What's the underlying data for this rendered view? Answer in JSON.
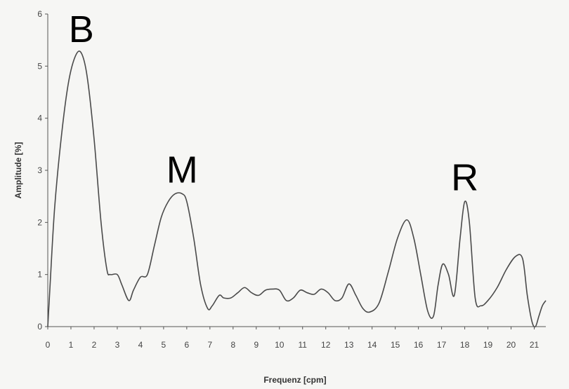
{
  "chart_data": {
    "type": "line",
    "xlabel": "Frequenz [cpm]",
    "ylabel": "Amplitude [%]",
    "xlim": [
      0,
      21.5
    ],
    "ylim": [
      0,
      6
    ],
    "x_ticks": [
      "0",
      "1",
      "2",
      "3",
      "4",
      "5",
      "6",
      "7",
      "8",
      "9",
      "10",
      "11",
      "12",
      "13",
      "14",
      "15",
      "16",
      "17",
      "18",
      "19",
      "20",
      "21"
    ],
    "y_ticks": [
      "0",
      "1",
      "2",
      "3",
      "4",
      "5",
      "6"
    ],
    "grid": false,
    "series": [
      {
        "color": "#4a4a4a",
        "x": [
          0,
          0.1,
          0.3,
          0.6,
          0.9,
          1.2,
          1.45,
          1.7,
          2.0,
          2.3,
          2.55,
          2.7,
          3.0,
          3.2,
          3.5,
          3.7,
          4.0,
          4.3,
          4.6,
          4.9,
          5.2,
          5.5,
          5.8,
          6.0,
          6.3,
          6.6,
          6.9,
          7.1,
          7.4,
          7.6,
          7.9,
          8.2,
          8.5,
          8.8,
          9.1,
          9.4,
          9.7,
          10.0,
          10.3,
          10.6,
          10.9,
          11.2,
          11.5,
          11.8,
          12.1,
          12.4,
          12.7,
          13.0,
          13.3,
          13.6,
          13.9,
          14.3,
          14.7,
          15.1,
          15.5,
          15.8,
          16.1,
          16.4,
          16.65,
          16.85,
          17.05,
          17.3,
          17.55,
          17.8,
          18.0,
          18.2,
          18.45,
          18.7,
          19.0,
          19.4,
          19.8,
          20.2,
          20.5,
          20.7,
          20.9,
          21.05,
          21.2,
          21.35,
          21.5
        ],
        "y": [
          0.0,
          0.8,
          2.3,
          3.7,
          4.7,
          5.2,
          5.25,
          4.8,
          3.6,
          2.0,
          1.1,
          1.0,
          1.0,
          0.8,
          0.5,
          0.7,
          0.95,
          1.0,
          1.55,
          2.1,
          2.4,
          2.55,
          2.55,
          2.4,
          1.7,
          0.8,
          0.35,
          0.4,
          0.6,
          0.55,
          0.55,
          0.65,
          0.75,
          0.65,
          0.6,
          0.7,
          0.72,
          0.7,
          0.5,
          0.55,
          0.7,
          0.65,
          0.62,
          0.72,
          0.65,
          0.5,
          0.55,
          0.82,
          0.6,
          0.35,
          0.28,
          0.45,
          1.05,
          1.7,
          2.05,
          1.7,
          1.0,
          0.3,
          0.2,
          0.8,
          1.2,
          1.0,
          0.6,
          1.7,
          2.4,
          2.0,
          0.55,
          0.4,
          0.5,
          0.75,
          1.1,
          1.35,
          1.3,
          0.6,
          0.1,
          0.0,
          0.2,
          0.4,
          0.5
        ]
      }
    ],
    "annotations": [
      {
        "text": "B",
        "x": 1.45,
        "y": 5.25
      },
      {
        "text": "M",
        "x": 5.8,
        "y": 2.55
      },
      {
        "text": "R",
        "x": 18.0,
        "y": 2.4
      }
    ]
  }
}
